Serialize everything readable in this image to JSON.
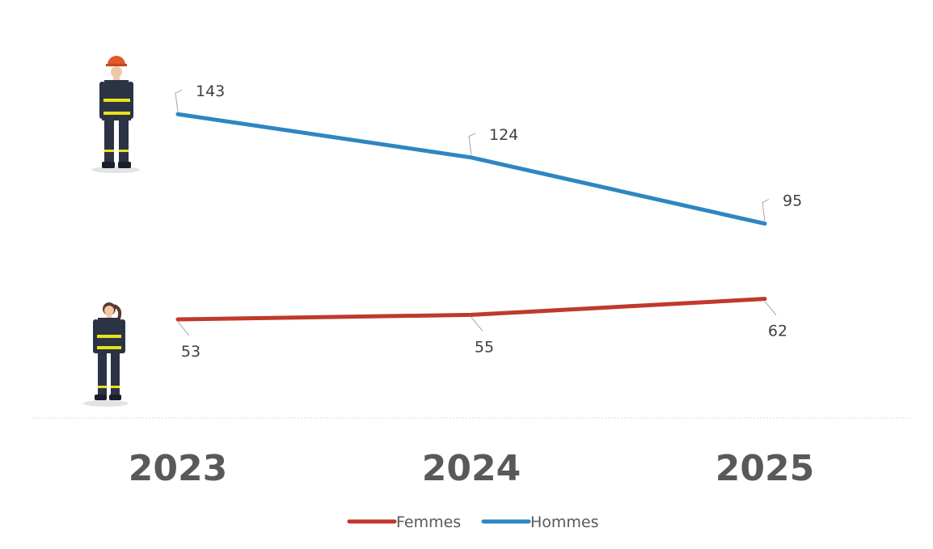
{
  "chart_data": {
    "type": "line",
    "categories": [
      "2023",
      "2024",
      "2025"
    ],
    "series": [
      {
        "name": "Femmes",
        "values": [
          53,
          55,
          62
        ],
        "color": "#c0392b"
      },
      {
        "name": "Hommes",
        "values": [
          143,
          124,
          95
        ],
        "color": "#2e86c1"
      }
    ],
    "ylim": [
      0,
      160
    ],
    "grid": false,
    "legend": "bottom-center",
    "icons": [
      "male-firefighter-icon",
      "female-firefighter-icon"
    ]
  }
}
